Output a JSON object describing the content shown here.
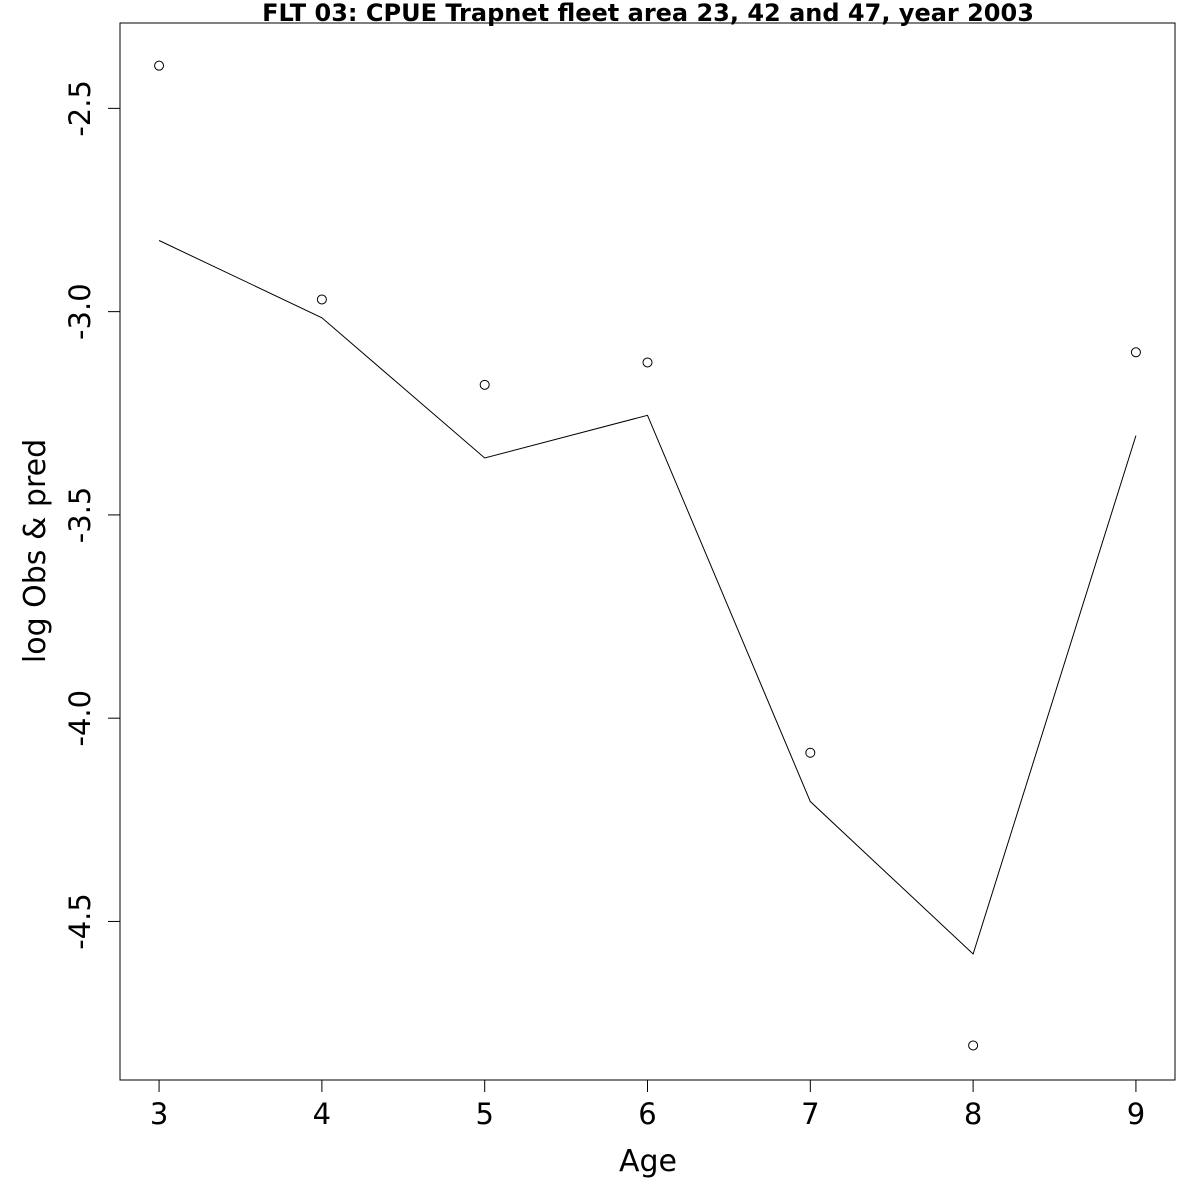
{
  "chart_data": {
    "type": "line",
    "title": "FLT 03: CPUE Trapnet fleet area 23, 42 and 47, year 2003",
    "xlabel": "Age",
    "ylabel": "log Obs & pred",
    "x": [
      3,
      4,
      5,
      6,
      7,
      8,
      9
    ],
    "xticks": [
      "3",
      "4",
      "5",
      "6",
      "7",
      "8",
      "9"
    ],
    "yticks": [
      "-2.5",
      "-3.0",
      "-3.5",
      "-4.0",
      "-4.5"
    ],
    "xlim": [
      2.76,
      9.24
    ],
    "ylim": [
      -4.89,
      -2.29
    ],
    "series": [
      {
        "style": "points",
        "color": "#000000",
        "values": [
          -2.395,
          -2.97,
          -3.18,
          -3.125,
          -4.085,
          -4.805,
          -3.1
        ]
      },
      {
        "style": "line",
        "color": "#000000",
        "values": [
          -2.825,
          -3.015,
          -3.36,
          -3.255,
          -4.205,
          -4.58,
          -3.305
        ]
      }
    ],
    "grid": false
  }
}
